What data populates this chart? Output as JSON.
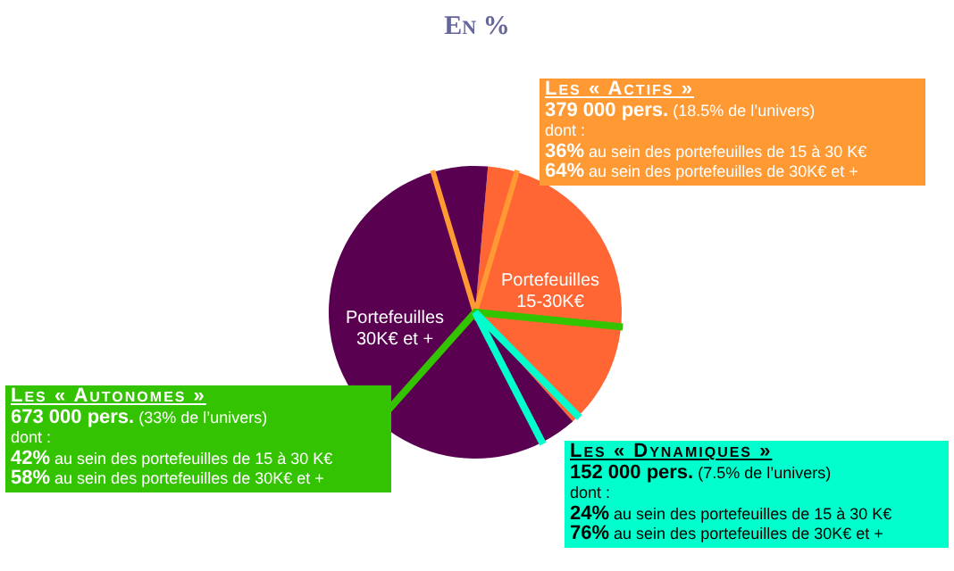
{
  "chart_data": {
    "type": "pie",
    "title": "En %",
    "categories": [
      "Portefeuilles 15-30K€",
      "Portefeuilles 30K€ et +"
    ],
    "values": [
      37,
      63
    ],
    "colors": [
      "#ff6633",
      "#5a0050"
    ],
    "legend": false,
    "annotations": [
      "Les « Actifs »",
      "379 000 pers. (18.5% de l’univers)",
      "dont :",
      "36% au sein des portefeuilles de 15 à 30 K€",
      "64% au sein des portefeuilles de 30K€ et +",
      "Les « Autonomes »",
      "673 000 pers. (33% de l’univers)",
      "dont :",
      "42% au sein des portefeuilles de 15 à 30 K€",
      "58% au sein des portefeuilles de 30K€ et +",
      "Les « Dynamiques »",
      "152 000 pers. (7.5% de l’univers)",
      "dont :",
      "24% au sein des portefeuilles de 15 à 30 K€",
      "76% au sein des portefeuilles de 30K€ et +"
    ]
  }
}
